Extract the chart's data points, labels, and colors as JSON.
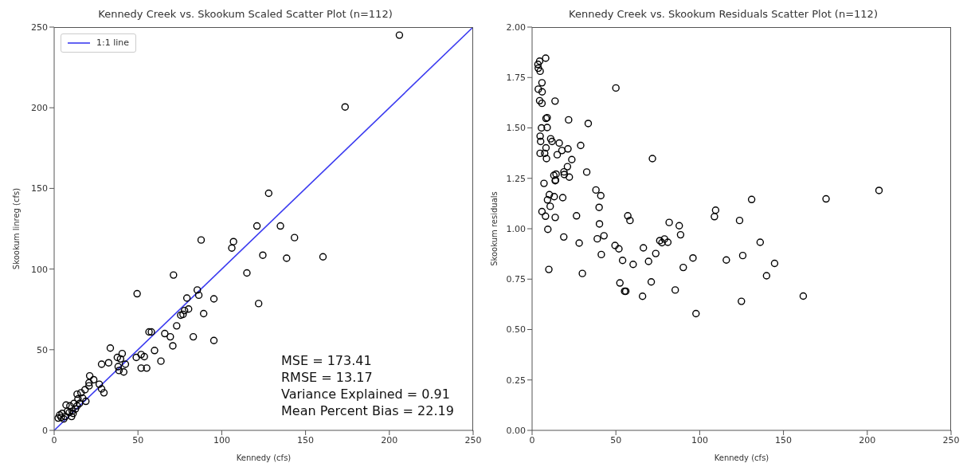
{
  "chart_data": [
    {
      "type": "scatter",
      "title": "Kennedy Creek vs. Skookum Scaled Scatter Plot (n=112)",
      "xlabel": "Kennedy (cfs)",
      "ylabel": "Skookum linreg (cfs)",
      "xlim": [
        0,
        250
      ],
      "ylim": [
        0,
        250
      ],
      "xticks": [
        0,
        50,
        100,
        150,
        200,
        250
      ],
      "yticks": [
        0,
        50,
        100,
        150,
        200,
        250
      ],
      "grid": false,
      "legend": "top left",
      "series": [
        {
          "marker": "circle",
          "color": "#000000",
          "x": [
            206,
            173.6,
            128,
            121,
            135,
            143.4,
            124.5,
            138.7,
            160.4,
            115,
            122,
            87.7,
            107,
            106,
            71.2,
            49.5,
            85.4,
            86.3,
            79.2,
            95.3,
            80.2,
            77.8,
            75.5,
            76.9,
            89.2,
            73.1,
            56.6,
            58,
            66,
            69.3,
            83,
            95.3,
            70.8,
            33.5,
            40.6,
            37.7,
            59.9,
            49,
            51.9,
            53.8,
            39.6,
            63.7,
            28.3,
            32.5,
            42.5,
            38.2,
            38.7,
            41.5,
            51.9,
            55.2,
            21.2,
            23.6,
            20.8,
            26.9,
            28.3,
            29.7,
            18.4,
            16,
            13.7,
            18.9,
            20.8,
            17,
            14.2,
            11.8,
            7.1,
            9.4,
            8,
            10.8,
            4.7,
            3.3,
            6.6,
            10.4,
            4.2,
            5.7,
            2.4,
            12.7,
            11.3,
            9,
            13.7,
            15.1
          ],
          "values": [
            245,
            200.5,
            147,
            126.7,
            126.7,
            119.5,
            108.6,
            106.7,
            107.6,
            97.6,
            78.6,
            118,
            117,
            113,
            96.3,
            84.7,
            87,
            83.8,
            82,
            81.5,
            75.2,
            74.3,
            71.4,
            71.9,
            72.4,
            64.8,
            61,
            61,
            60,
            58,
            58,
            55.7,
            52.4,
            51,
            47.6,
            45.2,
            49.5,
            45.2,
            47,
            45.7,
            44.3,
            42.9,
            41,
            41.9,
            41,
            39.5,
            37.1,
            36.2,
            38.6,
            38.6,
            33.8,
            31.4,
            29.5,
            28.6,
            25.7,
            23.3,
            25.2,
            23.3,
            22.4,
            18,
            27.6,
            20,
            19.5,
            16.7,
            15.7,
            15.2,
            11.9,
            11.9,
            10.5,
            9.5,
            8.6,
            8.6,
            8.1,
            7.1,
            7.6,
            13.3,
            10.5,
            11,
            15.2,
            16.7
          ]
        },
        {
          "type": "line",
          "marker": "none",
          "name": "1:1 line",
          "color": "#3b3bf0",
          "line_style": "solid",
          "x": [
            0,
            250
          ],
          "values": [
            0,
            250
          ]
        }
      ],
      "annotations": [
        "MSE = 173.41",
        "RMSE = 13.17",
        "Variance Explained = 0.91",
        "Mean Percent Bias = 22.19"
      ]
    },
    {
      "type": "scatter",
      "title": "Kennedy Creek vs. Skookum Residuals Scatter Plot (n=112)",
      "xlabel": "Kennedy (cfs)",
      "ylabel": "Skookum residuals",
      "xlim": [
        0,
        250
      ],
      "ylim": [
        0,
        2
      ],
      "xticks": [
        0,
        50,
        100,
        150,
        200,
        250
      ],
      "yticks": [
        {
          "value": 0,
          "label": "0.00"
        },
        {
          "value": 0.25,
          "label": "0.25"
        },
        {
          "value": 0.5,
          "label": "0.50"
        },
        {
          "value": 0.75,
          "label": "0.75"
        },
        {
          "value": 1,
          "label": "1.00"
        },
        {
          "value": 1.25,
          "label": "1.25"
        },
        {
          "value": 1.5,
          "label": "1.50"
        },
        {
          "value": 1.75,
          "label": "1.75"
        },
        {
          "value": 2,
          "label": "2.00"
        }
      ],
      "grid": false,
      "marker": "circle",
      "series": [
        {
          "color": "#000000",
          "x": [
            7.1,
            13.8,
            38.1,
            41,
            10.3,
            13.2,
            18.3,
            9.2,
            10.8,
            40,
            5.9,
            8,
            13.8,
            26.5,
            57.1,
            58.4,
            108.8,
            109.5,
            131,
            123.8,
            81.8,
            87.8,
            88.6,
            9.4,
            40.2,
            18.9,
            28.1,
            38.9,
            42.9,
            49.5,
            51.8,
            41.3,
            66.4,
            73.8,
            76.2,
            77.5,
            79,
            81,
            54,
            60.3,
            69.5,
            90.2,
            96,
            115.9,
            125.7,
            10,
            30,
            52.4,
            71.1,
            55.2,
            55.9,
            65.9,
            85.4,
            124.9,
            97.8,
            207,
            175.4,
            136.1,
            144.7,
            139.9,
            161.8,
            8.1,
            4.5,
            3.5,
            3.7,
            4.8,
            5.9,
            50,
            3.7,
            6,
            4.5,
            5.9,
            13.7,
            8.3,
            9,
            21.8,
            33.5,
            5.6,
            9,
            4.8,
            5.1,
            11.1,
            11.9,
            16.2,
            29,
            8.3,
            17.8,
            21.4,
            4.8,
            7.5,
            15,
            8.6,
            23.7,
            71.8,
            21.1,
            19,
            19.2,
            32.6,
            22.2,
            13,
            14.3,
            14
          ],
          "values": [
            1.225,
            1.238,
            1.192,
            1.164,
            1.169,
            1.159,
            1.154,
            1.143,
            1.111,
            1.106,
            1.085,
            1.062,
            1.056,
            1.064,
            1.064,
            1.041,
            1.06,
            1.092,
            1.145,
            1.041,
            1.031,
            1.015,
            0.97,
            0.997,
            1.024,
            0.959,
            0.929,
            0.95,
            0.965,
            0.917,
            0.9,
            0.872,
            0.905,
            0.877,
            0.941,
            0.931,
            0.949,
            0.933,
            0.843,
            0.823,
            0.838,
            0.808,
            0.855,
            0.845,
            0.867,
            0.798,
            0.778,
            0.731,
            0.736,
            0.69,
            0.69,
            0.665,
            0.696,
            0.64,
            0.579,
            1.19,
            1.148,
            0.933,
            0.828,
            0.767,
            0.666,
            1.846,
            1.831,
            1.815,
            1.796,
            1.781,
            1.724,
            1.698,
            1.692,
            1.679,
            1.635,
            1.622,
            1.633,
            1.547,
            1.551,
            1.54,
            1.522,
            1.5,
            1.502,
            1.459,
            1.433,
            1.446,
            1.433,
            1.425,
            1.413,
            1.401,
            1.388,
            1.396,
            1.374,
            1.374,
            1.367,
            1.348,
            1.343,
            1.348,
            1.308,
            1.282,
            1.269,
            1.281,
            1.256,
            1.265,
            1.271,
            1.241
          ]
        }
      ]
    }
  ]
}
